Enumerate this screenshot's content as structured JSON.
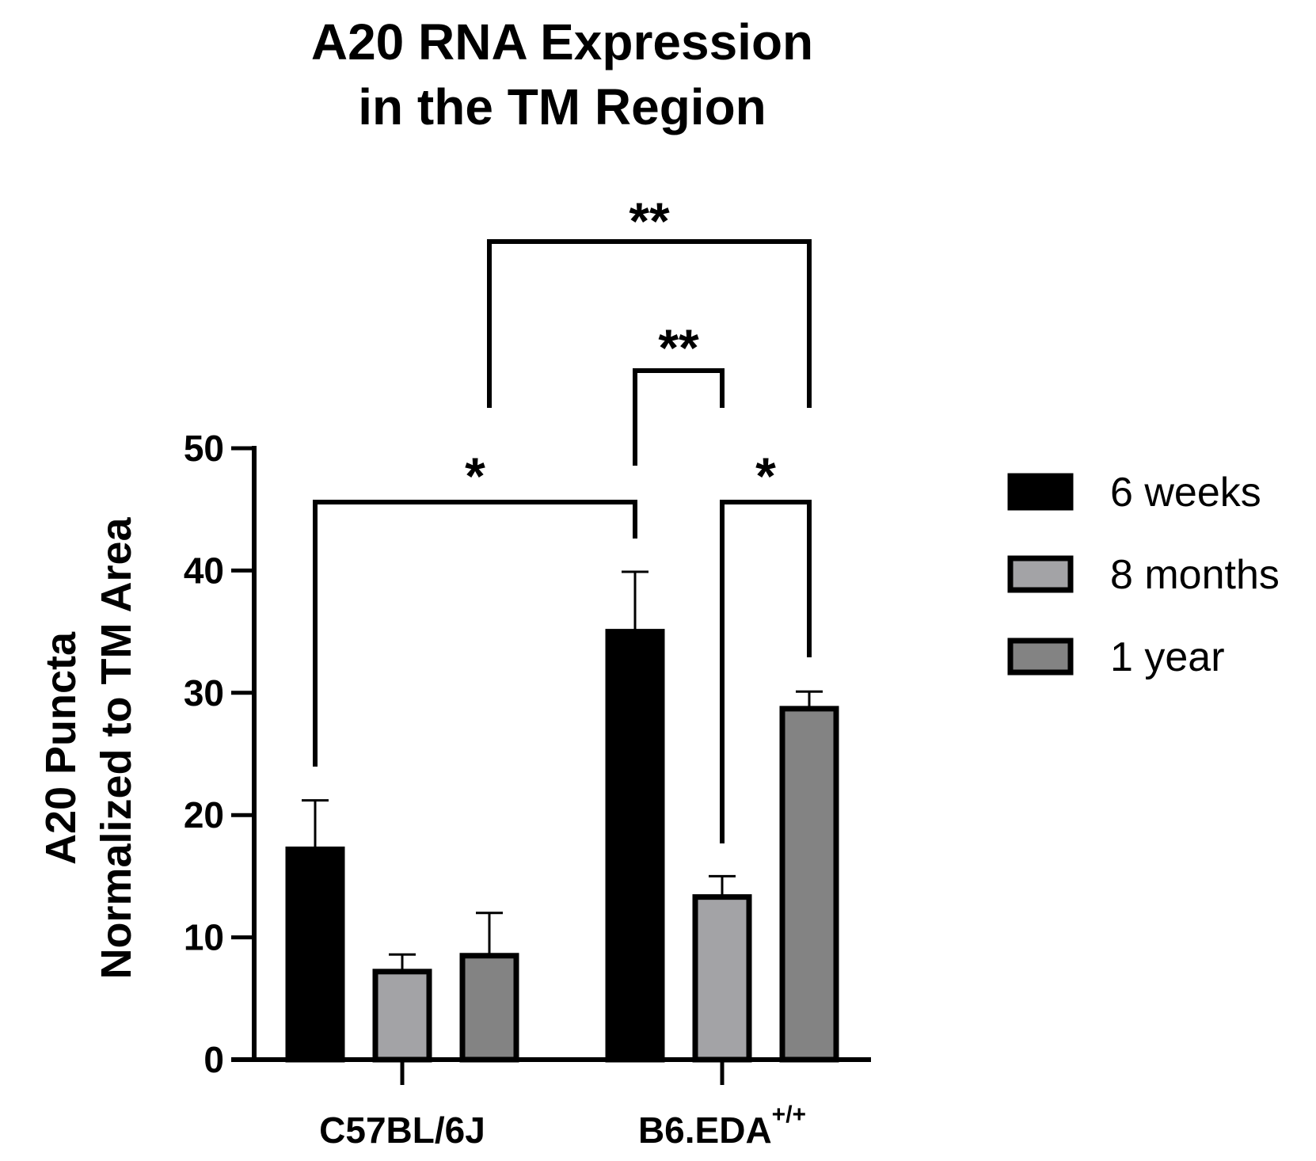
{
  "chart_data": {
    "type": "bar",
    "title": [
      "A20 RNA Expression",
      "in the TM Region"
    ],
    "ylabel": [
      "A20 Puncta",
      "Normalized to TM Area"
    ],
    "xlabel": "",
    "ylim": [
      0,
      50
    ],
    "yticks": [
      0,
      10,
      20,
      30,
      40,
      50
    ],
    "categories": [
      {
        "label": "C57BL/6J",
        "superscript": ""
      },
      {
        "label": "B6.EDA",
        "superscript": "+/+"
      }
    ],
    "series": [
      {
        "name": "6 weeks",
        "color": "#000000",
        "values": [
          17.2,
          35.0
        ],
        "errors": [
          4.0,
          4.9
        ]
      },
      {
        "name": "8 months",
        "color": "#a3a3a6",
        "values": [
          7.2,
          13.3
        ],
        "errors": [
          1.4,
          1.7
        ]
      },
      {
        "name": "1 year",
        "color": "#838383",
        "values": [
          8.5,
          28.7
        ],
        "errors": [
          3.5,
          1.4
        ]
      }
    ],
    "legend_position": "right",
    "grid": false,
    "significance": [
      {
        "label": "**",
        "from": [
          0,
          2
        ],
        "to": [
          1,
          2
        ]
      },
      {
        "label": "**",
        "from": [
          1,
          0
        ],
        "to": [
          1,
          1
        ]
      },
      {
        "label": "*",
        "from": [
          0,
          0
        ],
        "to": [
          1,
          0
        ]
      },
      {
        "label": "*",
        "from": [
          1,
          1
        ],
        "to": [
          1,
          2
        ]
      }
    ]
  }
}
